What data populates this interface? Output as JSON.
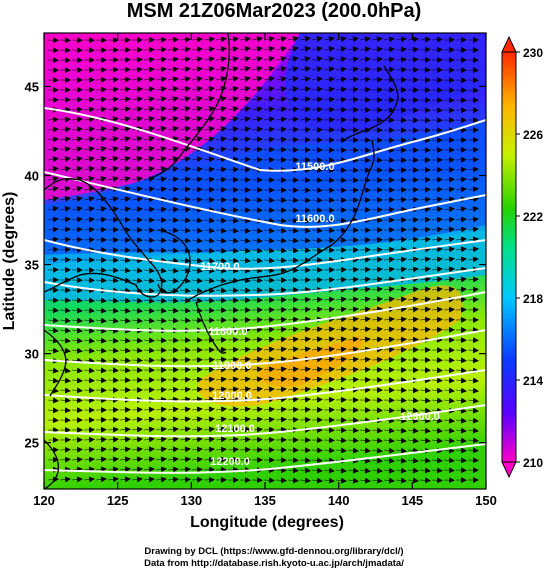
{
  "title": "MSM 21Z06Mar2023 (200.0hPa)",
  "xlabel": "Longitude (degrees)",
  "ylabel": "Latitude  (degrees)",
  "credits": [
    "Drawing by DCL (https://www.gfd-dennou.org/library/dcl/)",
    "Data from http://database.rish.kyoto-u.ac.jp/arch/jmadata/"
  ],
  "chart_data": {
    "type": "heatmap",
    "x_range": [
      120,
      150
    ],
    "y_range": [
      22.4,
      48
    ],
    "x_ticks": [
      120,
      125,
      130,
      135,
      140,
      145,
      150
    ],
    "y_ticks": [
      25,
      30,
      35,
      40,
      45
    ],
    "colorbar": {
      "range": [
        210,
        230
      ],
      "ticks": [
        210,
        214,
        218,
        222,
        226,
        230
      ],
      "colors": [
        "#ff00c8",
        "#5a00ff",
        "#0a3cff",
        "#00c8ff",
        "#00e08c",
        "#28d200",
        "#c8f000",
        "#ffb400",
        "#ff2800"
      ]
    },
    "height_contours": [
      {
        "label": "11500.0"
      },
      {
        "label": "11600.0"
      },
      {
        "label": "11700.0"
      },
      {
        "label": "11800.0"
      },
      {
        "label": "11900.0"
      },
      {
        "label": "12000.0"
      },
      {
        "label": "12100.0"
      },
      {
        "label": "12200.0"
      },
      {
        "label": "12300.0"
      }
    ],
    "vectors": "wind arrows, predominantly westerly (eastward)"
  }
}
